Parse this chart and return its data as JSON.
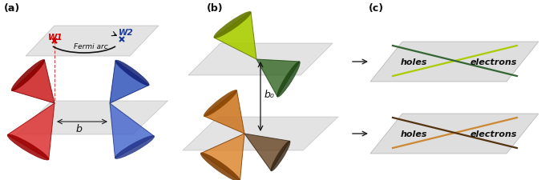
{
  "fig_width": 6.85,
  "fig_height": 2.26,
  "bg_color": "#ffffff",
  "panel_labels": [
    "(a)",
    "(b)",
    "(c)"
  ],
  "panel_label_fontsize": 10,
  "panel_a": {
    "label_W1": "W1",
    "label_W2": "W2",
    "label_fermi": "Fermi arc",
    "label_b": "b",
    "color_W1": "#cc0000",
    "color_W2": "#1a3a99",
    "color_cone_left": "#cc2222",
    "color_cone_right": "#2244aa",
    "plane_color": "#d0d0d0"
  },
  "panel_b": {
    "label_b0": "b₀",
    "color_top_cone": "#aacc00",
    "color_top_cone_dark": "#336622",
    "color_bot_cone": "#cc7722",
    "color_bot_cone_dark": "#553311",
    "plane_color": "#cccccc"
  },
  "panel_c": {
    "label_holes": "holes",
    "label_electrons": "electrons",
    "color_top_line1": "#aacc00",
    "color_top_line2": "#336633",
    "color_bot_line1": "#cc8833",
    "color_bot_line2": "#553311",
    "plane_color_top": "#d8d8d8",
    "plane_color_bot": "#d8d8d8"
  },
  "arrow_color": "#222222"
}
